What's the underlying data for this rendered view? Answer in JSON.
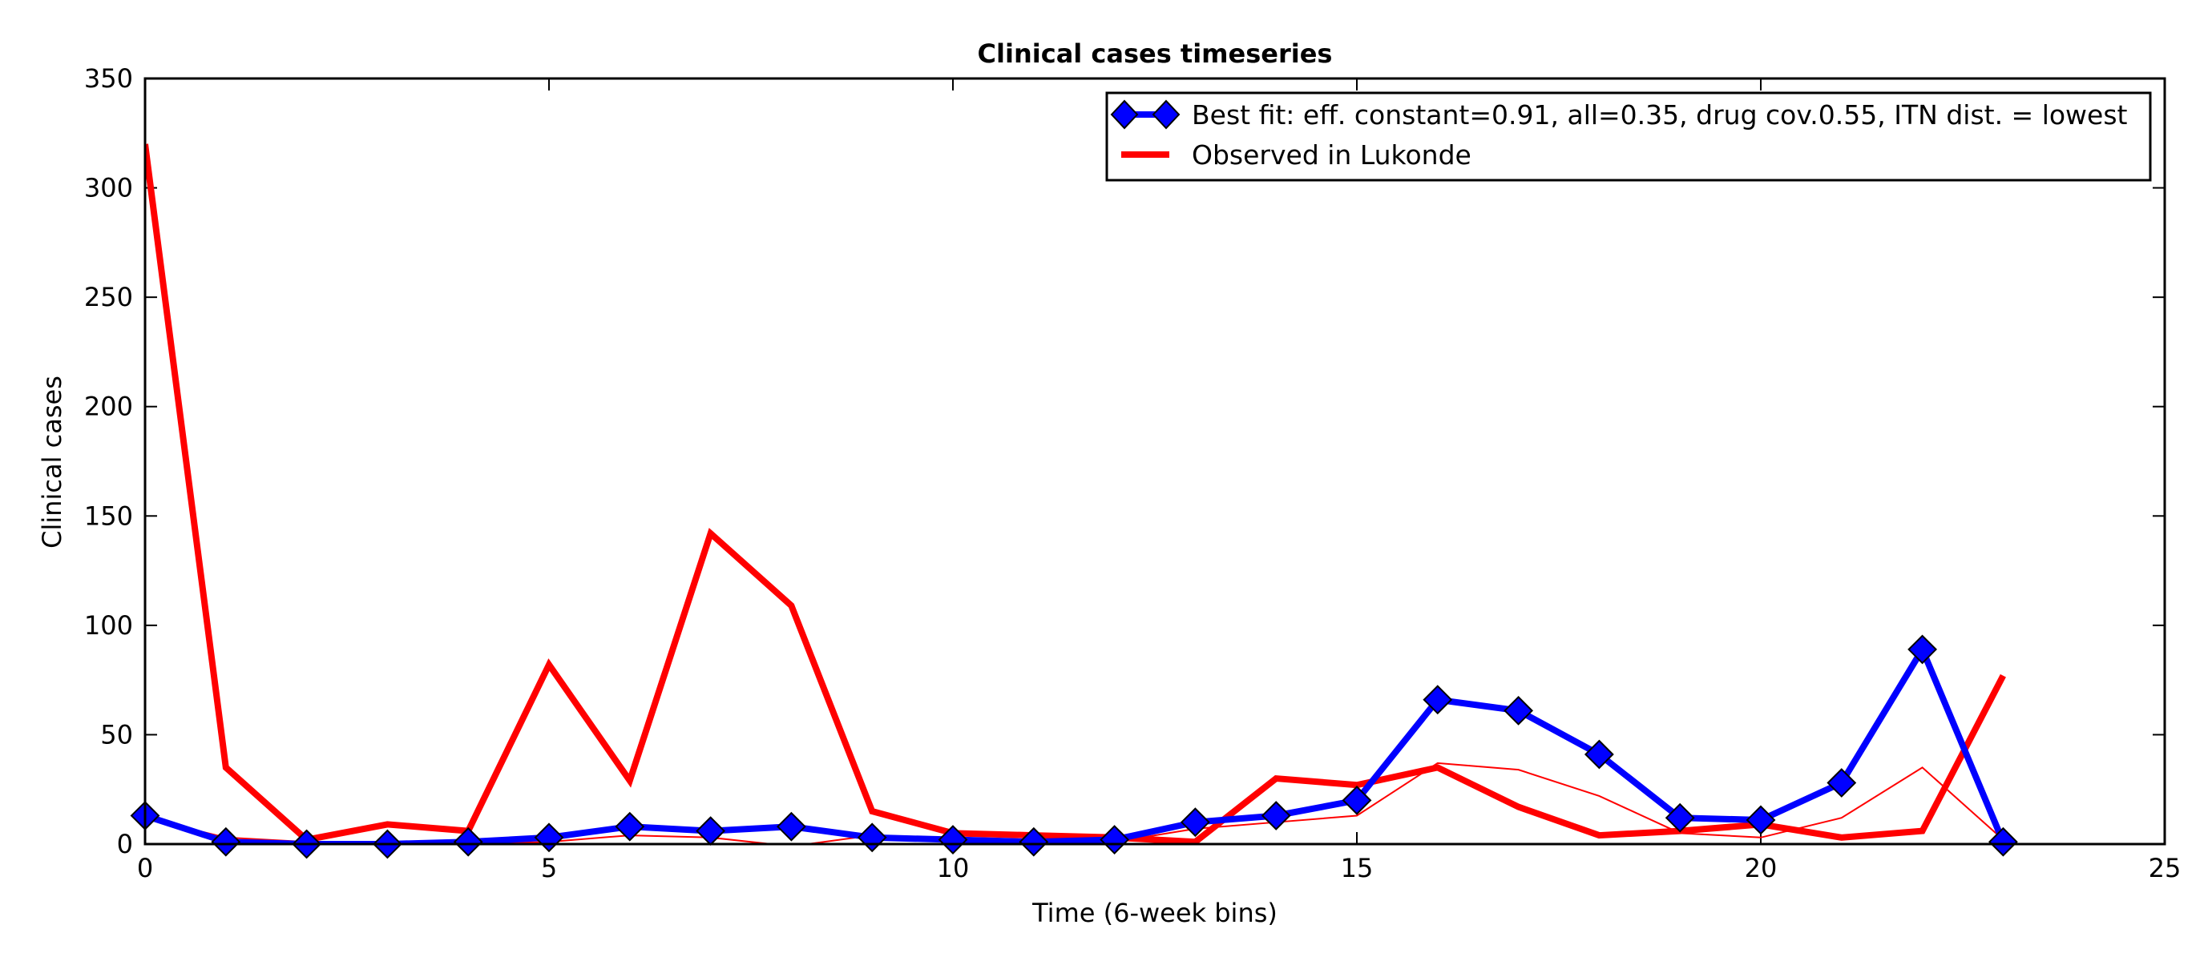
{
  "chart_data": {
    "type": "line",
    "title": "Clinical cases timeseries",
    "xlabel": "Time (6-week bins)",
    "ylabel": "Clinical cases",
    "xlim": [
      0,
      25
    ],
    "ylim": [
      0,
      350
    ],
    "xticks": [
      0,
      5,
      10,
      15,
      20,
      25
    ],
    "yticks": [
      0,
      50,
      100,
      150,
      200,
      250,
      300,
      350
    ],
    "xtick_labels": [
      "0",
      "5",
      "10",
      "15",
      "20",
      "25"
    ],
    "ytick_labels": [
      "0",
      "50",
      "100",
      "150",
      "200",
      "250",
      "300",
      "350"
    ],
    "grid": false,
    "legend_position": "top-right",
    "series": [
      {
        "name": "Best fit: eff. constant=0.91, all=0.35, drug cov.0.55, ITN dist. = lowest",
        "color": "#0000ff",
        "style": "line-with-diamond-markers",
        "x": [
          0,
          1,
          2,
          3,
          4,
          5,
          6,
          7,
          8,
          9,
          10,
          11,
          12,
          13,
          14,
          15,
          16,
          17,
          18,
          19,
          20,
          21,
          22,
          23
        ],
        "values": [
          13,
          1,
          0,
          0,
          1,
          3,
          8,
          6,
          8,
          3,
          2,
          1,
          2,
          10,
          13,
          20,
          66,
          61,
          41,
          12,
          11,
          28,
          89,
          1
        ]
      },
      {
        "name": "Observed in Lukonde",
        "color": "#ff0000",
        "style": "thick-line",
        "x": [
          0,
          1,
          2,
          3,
          4,
          5,
          6,
          7,
          8,
          9,
          10,
          11,
          12,
          13,
          14,
          15,
          16,
          17,
          18,
          19,
          20,
          21,
          22,
          23
        ],
        "values": [
          320,
          35,
          2,
          9,
          6,
          82,
          29,
          142,
          109,
          15,
          5,
          4,
          3,
          1,
          30,
          27,
          35,
          17,
          4,
          6,
          9,
          3,
          6,
          77
        ]
      },
      {
        "name": "",
        "color": "#ff0000",
        "style": "thin-line",
        "x": [
          0,
          1,
          2,
          3,
          4,
          5,
          6,
          7,
          8,
          9,
          10,
          11,
          12,
          13,
          14,
          15,
          16,
          17,
          18,
          19,
          20,
          21,
          22,
          23
        ],
        "values": [
          12,
          3,
          1,
          0,
          0,
          1,
          4,
          3,
          -1,
          4,
          1,
          0,
          1,
          7,
          10,
          13,
          37,
          34,
          22,
          5,
          3,
          12,
          35,
          2
        ]
      }
    ]
  }
}
